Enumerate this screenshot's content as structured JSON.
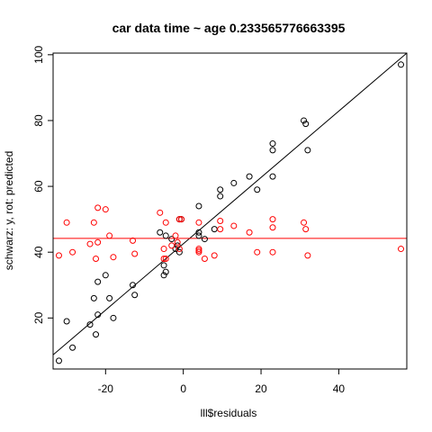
{
  "chart_data": {
    "type": "scatter",
    "title": "car data time ~ age 0.233565776663395",
    "xlabel": "lll$residuals",
    "ylabel": "schwarz: y, rot: predicted",
    "xlim": [
      -33.5,
      57.5
    ],
    "ylim": [
      4.5,
      100.5
    ],
    "x_ticks": [
      -20,
      0,
      20,
      40
    ],
    "y_ticks": [
      20,
      40,
      60,
      80,
      100
    ],
    "grid": false,
    "legend": "none",
    "series": [
      {
        "color": "#000000",
        "marker": "open-circle",
        "points": [
          [
            -32,
            7
          ],
          [
            -30,
            19
          ],
          [
            -28.5,
            11
          ],
          [
            -24,
            18
          ],
          [
            -23,
            26
          ],
          [
            -22.5,
            15
          ],
          [
            -22,
            21
          ],
          [
            -22,
            31
          ],
          [
            -20,
            33
          ],
          [
            -19,
            26
          ],
          [
            -18,
            20
          ],
          [
            -13,
            30
          ],
          [
            -12.5,
            27
          ],
          [
            -6,
            46
          ],
          [
            -5,
            36
          ],
          [
            -5,
            33
          ],
          [
            -4.5,
            34
          ],
          [
            -4.5,
            45
          ],
          [
            -3,
            44
          ],
          [
            -2,
            41
          ],
          [
            -1.5,
            42
          ],
          [
            -1,
            40
          ],
          [
            -1,
            50
          ],
          [
            -0.5,
            50
          ],
          [
            4,
            54
          ],
          [
            4,
            45
          ],
          [
            4,
            46
          ],
          [
            5.5,
            44
          ],
          [
            8,
            47
          ],
          [
            9.5,
            59
          ],
          [
            9.5,
            57
          ],
          [
            13,
            61
          ],
          [
            17,
            63
          ],
          [
            19,
            59
          ],
          [
            23,
            63
          ],
          [
            23,
            73
          ],
          [
            23,
            71
          ],
          [
            31,
            80
          ],
          [
            31.5,
            79
          ],
          [
            32,
            71
          ],
          [
            56,
            97
          ]
        ]
      },
      {
        "color": "#ff0000",
        "marker": "open-circle",
        "points": [
          [
            -32,
            39
          ],
          [
            -30,
            49
          ],
          [
            -28.5,
            40
          ],
          [
            -24,
            42.5
          ],
          [
            -23,
            49
          ],
          [
            -22.5,
            38
          ],
          [
            -22,
            53.5
          ],
          [
            -22,
            43
          ],
          [
            -20,
            53
          ],
          [
            -19,
            45
          ],
          [
            -18,
            38.5
          ],
          [
            -13,
            43.5
          ],
          [
            -12.5,
            39.5
          ],
          [
            -6,
            52
          ],
          [
            -5,
            41
          ],
          [
            -5,
            38
          ],
          [
            -4.5,
            49
          ],
          [
            -4.5,
            38
          ],
          [
            -3,
            42
          ],
          [
            -2,
            45
          ],
          [
            -1.5,
            43
          ],
          [
            -1,
            41
          ],
          [
            -1,
            50
          ],
          [
            -0.5,
            50
          ],
          [
            4,
            49
          ],
          [
            4,
            40
          ],
          [
            4,
            40.5
          ],
          [
            4,
            41
          ],
          [
            5.5,
            38
          ],
          [
            8,
            39
          ],
          [
            9.5,
            47
          ],
          [
            9.5,
            49.5
          ],
          [
            13,
            48
          ],
          [
            17,
            46
          ],
          [
            19,
            40
          ],
          [
            23,
            40
          ],
          [
            23,
            50
          ],
          [
            23,
            47.5
          ],
          [
            31,
            49
          ],
          [
            31.5,
            47
          ],
          [
            32,
            39
          ],
          [
            56,
            41
          ]
        ]
      }
    ],
    "reference_lines": [
      {
        "kind": "line",
        "color": "#000000",
        "x1": -33.5,
        "y1": 8.8,
        "x2": 57.5,
        "y2": 100.5
      },
      {
        "kind": "hline",
        "color": "#ff0000",
        "y": 44.2
      }
    ]
  }
}
